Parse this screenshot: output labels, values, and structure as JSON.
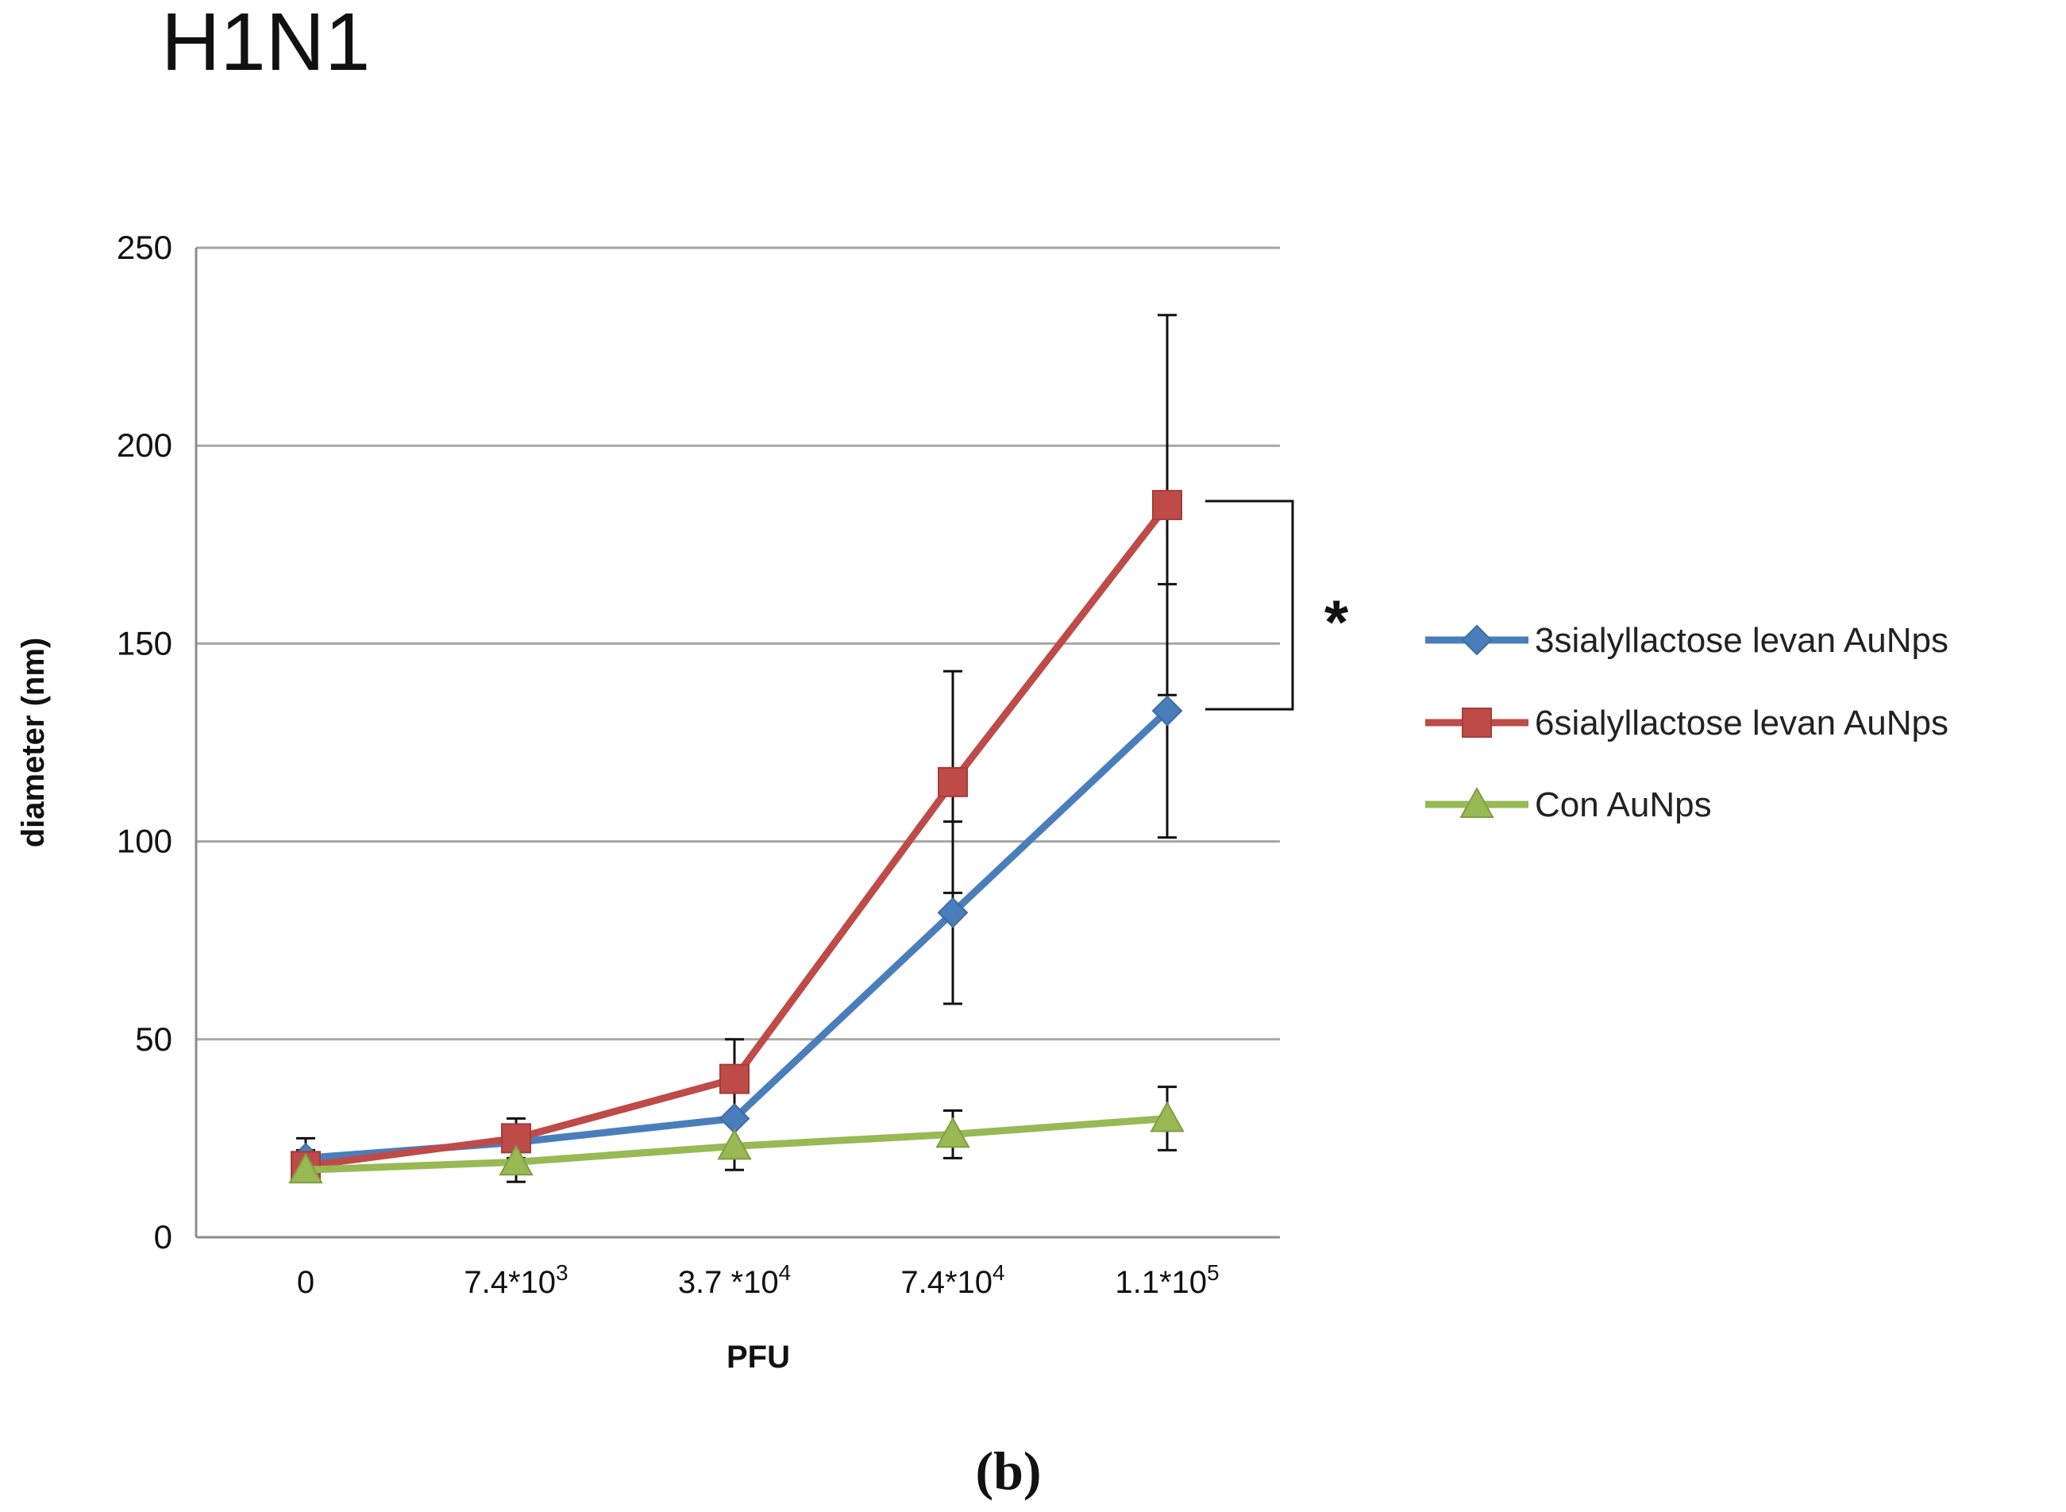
{
  "page": {
    "title": "H1N1",
    "panel_label": "(b)"
  },
  "chart_data": {
    "type": "line",
    "title": "H1N1",
    "xlabel": "PFU",
    "ylabel": "diameter (nm)",
    "ylim": [
      0,
      250
    ],
    "yticks": [
      0,
      50,
      100,
      150,
      200,
      250
    ],
    "grid": true,
    "legend_position": "right",
    "categories": [
      {
        "base": "0",
        "exp": ""
      },
      {
        "base": "7.4*10",
        "exp": "3"
      },
      {
        "base": "3.7 *10",
        "exp": "4"
      },
      {
        "base": "7.4*10",
        "exp": "4"
      },
      {
        "base": "1.1*10",
        "exp": "5"
      }
    ],
    "series": [
      {
        "name": "3sialyllactose levan AuNps",
        "color": "#4a7ebb",
        "marker": "diamond",
        "values": [
          20,
          24,
          30,
          82,
          133
        ],
        "errors": [
          5,
          6,
          7,
          23,
          32
        ]
      },
      {
        "name": "6sialyllactose levan AuNps",
        "color": "#be4b48",
        "marker": "square",
        "values": [
          18,
          25,
          40,
          115,
          185
        ],
        "errors": [
          4,
          5,
          10,
          28,
          48
        ]
      },
      {
        "name": "Con AuNps",
        "color": "#98b954",
        "marker": "triangle",
        "values": [
          17,
          19,
          23,
          26,
          30
        ],
        "errors": [
          3,
          5,
          6,
          6,
          8
        ]
      }
    ],
    "annotation": {
      "text": "*",
      "between_series": [
        "6sialyllactose levan AuNps",
        "3sialyllactose levan AuNps"
      ],
      "category_index": 4
    }
  }
}
